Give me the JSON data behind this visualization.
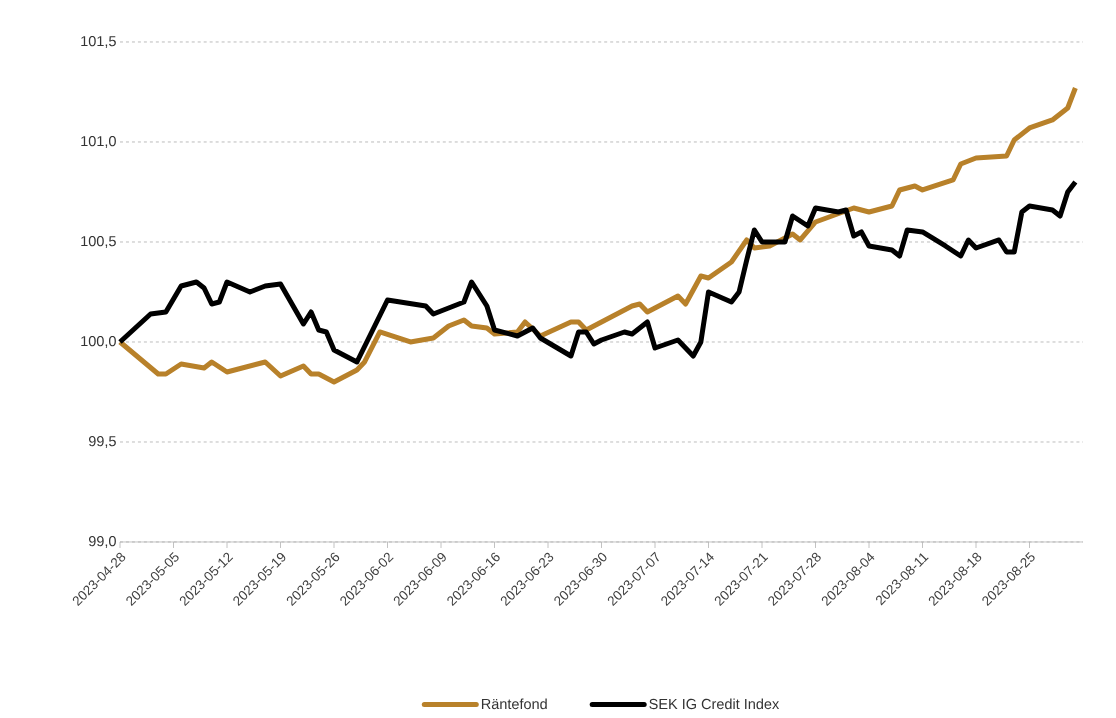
{
  "chart_data": {
    "type": "line",
    "x": [
      "2023-04-28",
      "2023-05-02",
      "2023-05-03",
      "2023-05-04",
      "2023-05-06",
      "2023-05-08",
      "2023-05-09",
      "2023-05-10",
      "2023-05-11",
      "2023-05-12",
      "2023-05-15",
      "2023-05-17",
      "2023-05-19",
      "2023-05-22",
      "2023-05-23",
      "2023-05-24",
      "2023-05-25",
      "2023-05-26",
      "2023-05-29",
      "2023-05-30",
      "2023-06-01",
      "2023-06-02",
      "2023-06-05",
      "2023-06-07",
      "2023-06-08",
      "2023-06-10",
      "2023-06-12",
      "2023-06-13",
      "2023-06-15",
      "2023-06-16",
      "2023-06-19",
      "2023-06-20",
      "2023-06-21",
      "2023-06-22",
      "2023-06-26",
      "2023-06-27",
      "2023-06-28",
      "2023-06-29",
      "2023-06-30",
      "2023-07-03",
      "2023-07-04",
      "2023-07-05",
      "2023-07-06",
      "2023-07-07",
      "2023-07-10",
      "2023-07-11",
      "2023-07-12",
      "2023-07-13",
      "2023-07-14",
      "2023-07-17",
      "2023-07-18",
      "2023-07-19",
      "2023-07-20",
      "2023-07-21",
      "2023-07-22",
      "2023-07-24",
      "2023-07-25",
      "2023-07-26",
      "2023-07-27",
      "2023-07-28",
      "2023-07-31",
      "2023-08-01",
      "2023-08-02",
      "2023-08-03",
      "2023-08-04",
      "2023-08-07",
      "2023-08-08",
      "2023-08-09",
      "2023-08-10",
      "2023-08-11",
      "2023-08-14",
      "2023-08-15",
      "2023-08-16",
      "2023-08-17",
      "2023-08-18",
      "2023-08-21",
      "2023-08-22",
      "2023-08-23",
      "2023-08-24",
      "2023-08-25",
      "2023-08-28",
      "2023-08-29",
      "2023-08-30",
      "2023-08-31"
    ],
    "series": [
      {
        "name": "Räntefond",
        "color": "#b8812a",
        "values": [
          100.0,
          null,
          99.84,
          99.84,
          99.89,
          null,
          99.87,
          99.9,
          null,
          99.85,
          null,
          99.9,
          99.83,
          99.88,
          99.84,
          99.84,
          null,
          99.8,
          99.86,
          99.9,
          100.05,
          null,
          100.0,
          null,
          100.02,
          100.08,
          100.11,
          100.08,
          100.07,
          100.04,
          100.05,
          100.1,
          null,
          100.03,
          100.1,
          100.1,
          100.06,
          null,
          null,
          null,
          100.18,
          100.19,
          100.15,
          null,
          100.23,
          100.19,
          null,
          100.33,
          100.32,
          100.4,
          null,
          100.51,
          100.47,
          null,
          100.48,
          null,
          100.54,
          100.51,
          null,
          100.6,
          null,
          null,
          100.67,
          null,
          100.65,
          100.68,
          100.76,
          null,
          100.78,
          100.76,
          null,
          100.81,
          100.89,
          null,
          100.92,
          null,
          100.93,
          101.01,
          null,
          101.07,
          101.11,
          null,
          101.17,
          101.27
        ]
      },
      {
        "name": "SEK IG Credit Index",
        "color": "#000000",
        "values": [
          100.0,
          100.14,
          null,
          100.15,
          100.28,
          100.3,
          100.27,
          100.19,
          100.2,
          100.3,
          100.25,
          100.28,
          100.29,
          100.09,
          100.15,
          100.06,
          100.05,
          99.96,
          99.9,
          null,
          null,
          100.21,
          null,
          100.18,
          100.14,
          null,
          100.2,
          100.3,
          100.18,
          100.06,
          100.03,
          null,
          100.07,
          100.02,
          99.93,
          100.05,
          100.05,
          99.99,
          100.01,
          100.05,
          100.04,
          null,
          100.1,
          99.97,
          100.01,
          null,
          99.93,
          100.0,
          100.25,
          100.2,
          100.25,
          100.41,
          100.56,
          100.5,
          null,
          100.5,
          100.63,
          null,
          100.58,
          100.67,
          100.65,
          100.66,
          100.53,
          100.55,
          100.48,
          100.46,
          100.43,
          100.56,
          null,
          100.55,
          100.48,
          null,
          100.43,
          100.51,
          100.47,
          100.51,
          100.45,
          100.45,
          100.65,
          100.68,
          100.66,
          100.63,
          100.75,
          100.8
        ]
      }
    ],
    "xlim": [
      "2023-04-28",
      "2023-09-01"
    ],
    "xticks": [
      "2023-04-28",
      "2023-05-05",
      "2023-05-12",
      "2023-05-19",
      "2023-05-26",
      "2023-06-02",
      "2023-06-09",
      "2023-06-16",
      "2023-06-23",
      "2023-06-30",
      "2023-07-07",
      "2023-07-14",
      "2023-07-21",
      "2023-07-28",
      "2023-08-04",
      "2023-08-11",
      "2023-08-18",
      "2023-08-25"
    ],
    "ylim": [
      99.0,
      101.5
    ],
    "yticks": [
      {
        "value": 99.0,
        "label": "99,0"
      },
      {
        "value": 99.5,
        "label": "99,5"
      },
      {
        "value": 100.0,
        "label": "100,0"
      },
      {
        "value": 100.5,
        "label": "100,5"
      },
      {
        "value": 101.0,
        "label": "101,0"
      },
      {
        "value": 101.5,
        "label": "101,5"
      }
    ],
    "grid": "y",
    "legend": "bottom",
    "marker": "none",
    "line_style": "solid"
  }
}
